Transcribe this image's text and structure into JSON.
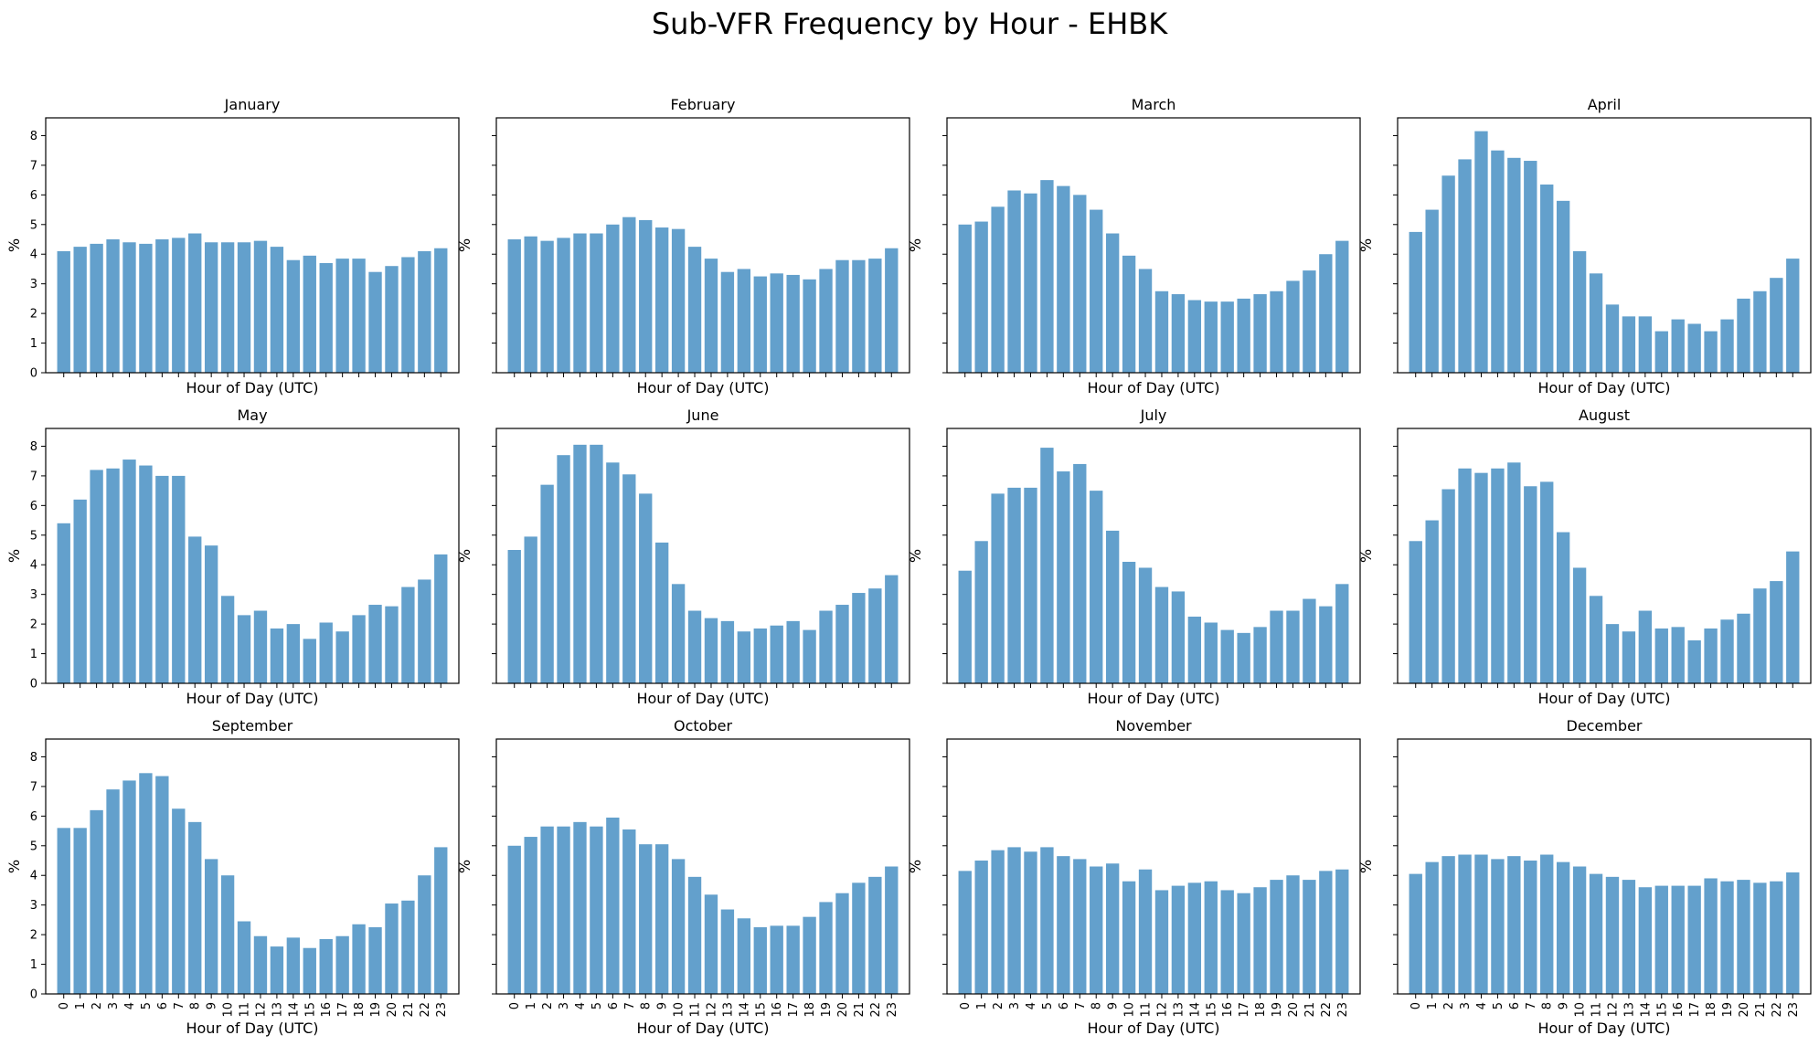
{
  "figure": {
    "title": "Sub-VFR Frequency by Hour - EHBK"
  },
  "chart_data": [
    {
      "type": "bar",
      "title": "January",
      "xlabel": "Hour of Day (UTC)",
      "ylabel": "%",
      "ylim": [
        0,
        8.6
      ],
      "yticks": [
        0,
        1,
        2,
        3,
        4,
        5,
        6,
        7,
        8
      ],
      "show_xtick_labels": false,
      "show_ytick_labels": true,
      "categories": [
        "0",
        "1",
        "2",
        "3",
        "4",
        "5",
        "6",
        "7",
        "8",
        "9",
        "10",
        "11",
        "12",
        "13",
        "14",
        "15",
        "16",
        "17",
        "18",
        "19",
        "20",
        "21",
        "22",
        "23"
      ],
      "values": [
        4.1,
        4.25,
        4.35,
        4.5,
        4.4,
        4.35,
        4.5,
        4.55,
        4.7,
        4.4,
        4.4,
        4.4,
        4.45,
        4.25,
        3.8,
        3.95,
        3.7,
        3.85,
        3.85,
        3.4,
        3.6,
        3.9,
        4.1,
        4.2
      ]
    },
    {
      "type": "bar",
      "title": "February",
      "xlabel": "Hour of Day (UTC)",
      "ylabel": "%",
      "ylim": [
        0,
        8.6
      ],
      "yticks": [
        0,
        1,
        2,
        3,
        4,
        5,
        6,
        7,
        8
      ],
      "show_xtick_labels": false,
      "show_ytick_labels": false,
      "categories": [
        "0",
        "1",
        "2",
        "3",
        "4",
        "5",
        "6",
        "7",
        "8",
        "9",
        "10",
        "11",
        "12",
        "13",
        "14",
        "15",
        "16",
        "17",
        "18",
        "19",
        "20",
        "21",
        "22",
        "23"
      ],
      "values": [
        4.5,
        4.6,
        4.45,
        4.55,
        4.7,
        4.7,
        5.0,
        5.25,
        5.15,
        4.9,
        4.85,
        4.25,
        3.85,
        3.4,
        3.5,
        3.25,
        3.35,
        3.3,
        3.15,
        3.5,
        3.8,
        3.8,
        3.85,
        4.2
      ]
    },
    {
      "type": "bar",
      "title": "March",
      "xlabel": "Hour of Day (UTC)",
      "ylabel": "%",
      "ylim": [
        0,
        8.6
      ],
      "yticks": [
        0,
        1,
        2,
        3,
        4,
        5,
        6,
        7,
        8
      ],
      "show_xtick_labels": false,
      "show_ytick_labels": false,
      "categories": [
        "0",
        "1",
        "2",
        "3",
        "4",
        "5",
        "6",
        "7",
        "8",
        "9",
        "10",
        "11",
        "12",
        "13",
        "14",
        "15",
        "16",
        "17",
        "18",
        "19",
        "20",
        "21",
        "22",
        "23"
      ],
      "values": [
        5.0,
        5.1,
        5.6,
        6.15,
        6.05,
        6.5,
        6.3,
        6.0,
        5.5,
        4.7,
        3.95,
        3.5,
        2.75,
        2.65,
        2.45,
        2.4,
        2.4,
        2.5,
        2.65,
        2.75,
        3.1,
        3.45,
        4.0,
        4.45
      ]
    },
    {
      "type": "bar",
      "title": "April",
      "xlabel": "Hour of Day (UTC)",
      "ylabel": "%",
      "ylim": [
        0,
        8.6
      ],
      "yticks": [
        0,
        1,
        2,
        3,
        4,
        5,
        6,
        7,
        8
      ],
      "show_xtick_labels": false,
      "show_ytick_labels": false,
      "categories": [
        "0",
        "1",
        "2",
        "3",
        "4",
        "5",
        "6",
        "7",
        "8",
        "9",
        "10",
        "11",
        "12",
        "13",
        "14",
        "15",
        "16",
        "17",
        "18",
        "19",
        "20",
        "21",
        "22",
        "23"
      ],
      "values": [
        4.75,
        5.5,
        6.65,
        7.2,
        8.15,
        7.5,
        7.25,
        7.15,
        6.35,
        5.8,
        4.1,
        3.35,
        2.3,
        1.9,
        1.9,
        1.4,
        1.8,
        1.65,
        1.4,
        1.8,
        2.5,
        2.75,
        3.2,
        3.85
      ]
    },
    {
      "type": "bar",
      "title": "May",
      "xlabel": "Hour of Day (UTC)",
      "ylabel": "%",
      "ylim": [
        0,
        8.6
      ],
      "yticks": [
        0,
        1,
        2,
        3,
        4,
        5,
        6,
        7,
        8
      ],
      "show_xtick_labels": false,
      "show_ytick_labels": true,
      "categories": [
        "0",
        "1",
        "2",
        "3",
        "4",
        "5",
        "6",
        "7",
        "8",
        "9",
        "10",
        "11",
        "12",
        "13",
        "14",
        "15",
        "16",
        "17",
        "18",
        "19",
        "20",
        "21",
        "22",
        "23"
      ],
      "values": [
        5.4,
        6.2,
        7.2,
        7.25,
        7.55,
        7.35,
        7.0,
        7.0,
        4.95,
        4.65,
        2.95,
        2.3,
        2.45,
        1.85,
        2.0,
        1.5,
        2.05,
        1.75,
        2.3,
        2.65,
        2.6,
        3.25,
        3.5,
        4.35
      ]
    },
    {
      "type": "bar",
      "title": "June",
      "xlabel": "Hour of Day (UTC)",
      "ylabel": "%",
      "ylim": [
        0,
        8.6
      ],
      "yticks": [
        0,
        1,
        2,
        3,
        4,
        5,
        6,
        7,
        8
      ],
      "show_xtick_labels": false,
      "show_ytick_labels": false,
      "categories": [
        "0",
        "1",
        "2",
        "3",
        "4",
        "5",
        "6",
        "7",
        "8",
        "9",
        "10",
        "11",
        "12",
        "13",
        "14",
        "15",
        "16",
        "17",
        "18",
        "19",
        "20",
        "21",
        "22",
        "23"
      ],
      "values": [
        4.5,
        4.95,
        6.7,
        7.7,
        8.05,
        8.05,
        7.45,
        7.05,
        6.4,
        4.75,
        3.35,
        2.45,
        2.2,
        2.1,
        1.75,
        1.85,
        1.95,
        2.1,
        1.8,
        2.45,
        2.65,
        3.05,
        3.2,
        3.65
      ]
    },
    {
      "type": "bar",
      "title": "July",
      "xlabel": "Hour of Day (UTC)",
      "ylabel": "%",
      "ylim": [
        0,
        8.6
      ],
      "yticks": [
        0,
        1,
        2,
        3,
        4,
        5,
        6,
        7,
        8
      ],
      "show_xtick_labels": false,
      "show_ytick_labels": false,
      "categories": [
        "0",
        "1",
        "2",
        "3",
        "4",
        "5",
        "6",
        "7",
        "8",
        "9",
        "10",
        "11",
        "12",
        "13",
        "14",
        "15",
        "16",
        "17",
        "18",
        "19",
        "20",
        "21",
        "22",
        "23"
      ],
      "values": [
        3.8,
        4.8,
        6.4,
        6.6,
        6.6,
        7.95,
        7.15,
        7.4,
        6.5,
        5.15,
        4.1,
        3.9,
        3.25,
        3.1,
        2.25,
        2.05,
        1.8,
        1.7,
        1.9,
        2.45,
        2.45,
        2.85,
        2.6,
        3.35
      ]
    },
    {
      "type": "bar",
      "title": "August",
      "xlabel": "Hour of Day (UTC)",
      "ylabel": "%",
      "ylim": [
        0,
        8.6
      ],
      "yticks": [
        0,
        1,
        2,
        3,
        4,
        5,
        6,
        7,
        8
      ],
      "show_xtick_labels": false,
      "show_ytick_labels": false,
      "categories": [
        "0",
        "1",
        "2",
        "3",
        "4",
        "5",
        "6",
        "7",
        "8",
        "9",
        "10",
        "11",
        "12",
        "13",
        "14",
        "15",
        "16",
        "17",
        "18",
        "19",
        "20",
        "21",
        "22",
        "23"
      ],
      "values": [
        4.8,
        5.5,
        6.55,
        7.25,
        7.1,
        7.25,
        7.45,
        6.65,
        6.8,
        5.1,
        3.9,
        2.95,
        2.0,
        1.75,
        2.45,
        1.85,
        1.9,
        1.45,
        1.85,
        2.15,
        2.35,
        3.2,
        3.45,
        4.45
      ]
    },
    {
      "type": "bar",
      "title": "September",
      "xlabel": "Hour of Day (UTC)",
      "ylabel": "%",
      "ylim": [
        0,
        8.6
      ],
      "yticks": [
        0,
        1,
        2,
        3,
        4,
        5,
        6,
        7,
        8
      ],
      "show_xtick_labels": true,
      "show_ytick_labels": true,
      "categories": [
        "0",
        "1",
        "2",
        "3",
        "4",
        "5",
        "6",
        "7",
        "8",
        "9",
        "10",
        "11",
        "12",
        "13",
        "14",
        "15",
        "16",
        "17",
        "18",
        "19",
        "20",
        "21",
        "22",
        "23"
      ],
      "values": [
        5.6,
        5.6,
        6.2,
        6.9,
        7.2,
        7.45,
        7.35,
        6.25,
        5.8,
        4.55,
        4.0,
        2.45,
        1.95,
        1.6,
        1.9,
        1.55,
        1.85,
        1.95,
        2.35,
        2.25,
        3.05,
        3.15,
        4.0,
        4.95
      ]
    },
    {
      "type": "bar",
      "title": "October",
      "xlabel": "Hour of Day (UTC)",
      "ylabel": "%",
      "ylim": [
        0,
        8.6
      ],
      "yticks": [
        0,
        1,
        2,
        3,
        4,
        5,
        6,
        7,
        8
      ],
      "show_xtick_labels": true,
      "show_ytick_labels": false,
      "categories": [
        "0",
        "1",
        "2",
        "3",
        "4",
        "5",
        "6",
        "7",
        "8",
        "9",
        "10",
        "11",
        "12",
        "13",
        "14",
        "15",
        "16",
        "17",
        "18",
        "19",
        "20",
        "21",
        "22",
        "23"
      ],
      "values": [
        5.0,
        5.3,
        5.65,
        5.65,
        5.8,
        5.65,
        5.95,
        5.55,
        5.05,
        5.05,
        4.55,
        3.95,
        3.35,
        2.85,
        2.55,
        2.25,
        2.3,
        2.3,
        2.6,
        3.1,
        3.4,
        3.75,
        3.95,
        4.3
      ]
    },
    {
      "type": "bar",
      "title": "November",
      "xlabel": "Hour of Day (UTC)",
      "ylabel": "%",
      "ylim": [
        0,
        8.6
      ],
      "yticks": [
        0,
        1,
        2,
        3,
        4,
        5,
        6,
        7,
        8
      ],
      "show_xtick_labels": true,
      "show_ytick_labels": false,
      "categories": [
        "0",
        "1",
        "2",
        "3",
        "4",
        "5",
        "6",
        "7",
        "8",
        "9",
        "10",
        "11",
        "12",
        "13",
        "14",
        "15",
        "16",
        "17",
        "18",
        "19",
        "20",
        "21",
        "22",
        "23"
      ],
      "values": [
        4.15,
        4.5,
        4.85,
        4.95,
        4.8,
        4.95,
        4.65,
        4.55,
        4.3,
        4.4,
        3.8,
        4.2,
        3.5,
        3.65,
        3.75,
        3.8,
        3.5,
        3.4,
        3.6,
        3.85,
        4.0,
        3.85,
        4.15,
        4.2
      ]
    },
    {
      "type": "bar",
      "title": "December",
      "xlabel": "Hour of Day (UTC)",
      "ylabel": "%",
      "ylim": [
        0,
        8.6
      ],
      "yticks": [
        0,
        1,
        2,
        3,
        4,
        5,
        6,
        7,
        8
      ],
      "show_xtick_labels": true,
      "show_ytick_labels": false,
      "categories": [
        "0",
        "1",
        "2",
        "3",
        "4",
        "5",
        "6",
        "7",
        "8",
        "9",
        "10",
        "11",
        "12",
        "13",
        "14",
        "15",
        "16",
        "17",
        "18",
        "19",
        "20",
        "21",
        "22",
        "23"
      ],
      "values": [
        4.05,
        4.45,
        4.65,
        4.7,
        4.7,
        4.55,
        4.65,
        4.5,
        4.7,
        4.45,
        4.3,
        4.05,
        3.95,
        3.85,
        3.6,
        3.65,
        3.65,
        3.65,
        3.9,
        3.8,
        3.85,
        3.75,
        3.8,
        4.1
      ]
    }
  ],
  "colors": {
    "bar": "#5b9bc9"
  }
}
